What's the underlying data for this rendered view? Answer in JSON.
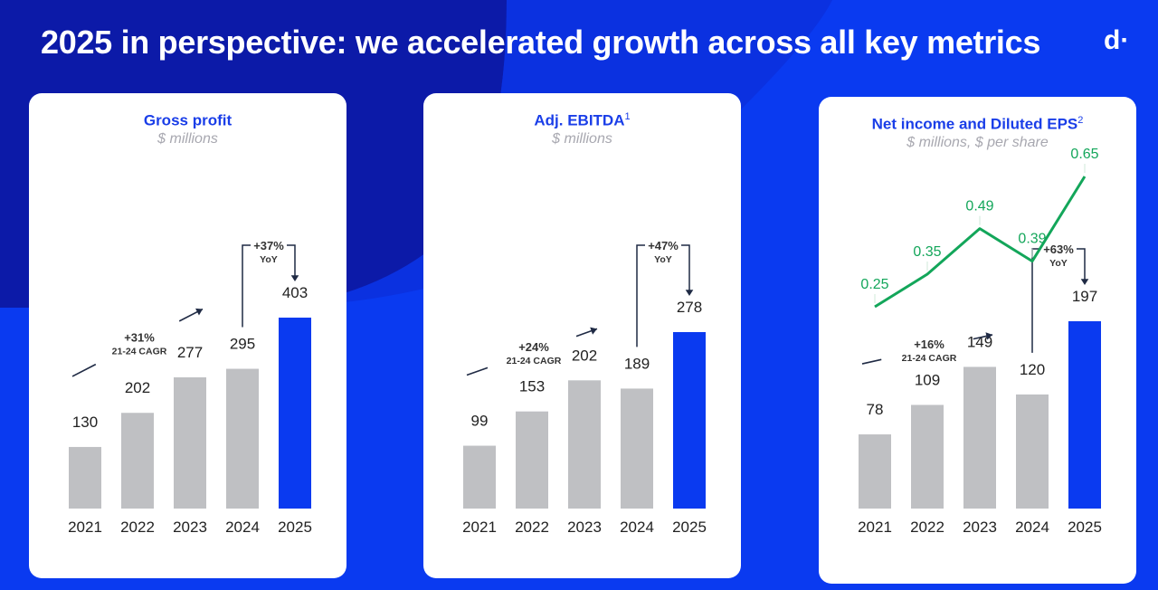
{
  "page": {
    "title": "2025 in perspective: we accelerated growth across all key metrics",
    "logo": "d·"
  },
  "colors": {
    "background": "#0a3af0",
    "background_dark": "#0c1aa8",
    "accent_blue": "#0a3af0",
    "bar_gray": "#bfc0c3",
    "line_green": "#13a65a",
    "title_blue": "#1a3ee8",
    "annotation": "#1f2a44"
  },
  "chart_data": [
    {
      "type": "bar",
      "title": "Gross profit",
      "title_sup": "",
      "subtitle": "$ millions",
      "categories": [
        "2021",
        "2022",
        "2023",
        "2024",
        "2025"
      ],
      "values": [
        130,
        202,
        277,
        295,
        403
      ],
      "highlight_index": 4,
      "cagr": {
        "value": "+31%",
        "label": "21-24 CAGR"
      },
      "yoy": {
        "value": "+37%",
        "label": "YoY"
      }
    },
    {
      "type": "bar",
      "title": "Adj. EBITDA",
      "title_sup": "1",
      "subtitle": "$ millions",
      "categories": [
        "2021",
        "2022",
        "2023",
        "2024",
        "2025"
      ],
      "values": [
        99,
        153,
        202,
        189,
        278
      ],
      "highlight_index": 4,
      "cagr": {
        "value": "+24%",
        "label": "21-24 CAGR"
      },
      "yoy": {
        "value": "+47%",
        "label": "YoY"
      }
    },
    {
      "type": "bar",
      "title": "Net income and Diluted EPS",
      "title_sup": "2",
      "subtitle": "$ millions, $ per share",
      "categories": [
        "2021",
        "2022",
        "2023",
        "2024",
        "2025"
      ],
      "values": [
        78,
        109,
        149,
        120,
        197
      ],
      "highlight_index": 4,
      "cagr": {
        "value": "+16%",
        "label": "21-24 CAGR"
      },
      "yoy": {
        "value": "+63%",
        "label": "YoY"
      },
      "line_series": {
        "name": "Diluted EPS",
        "values": [
          0.25,
          0.35,
          0.49,
          0.39,
          0.65
        ]
      }
    }
  ]
}
